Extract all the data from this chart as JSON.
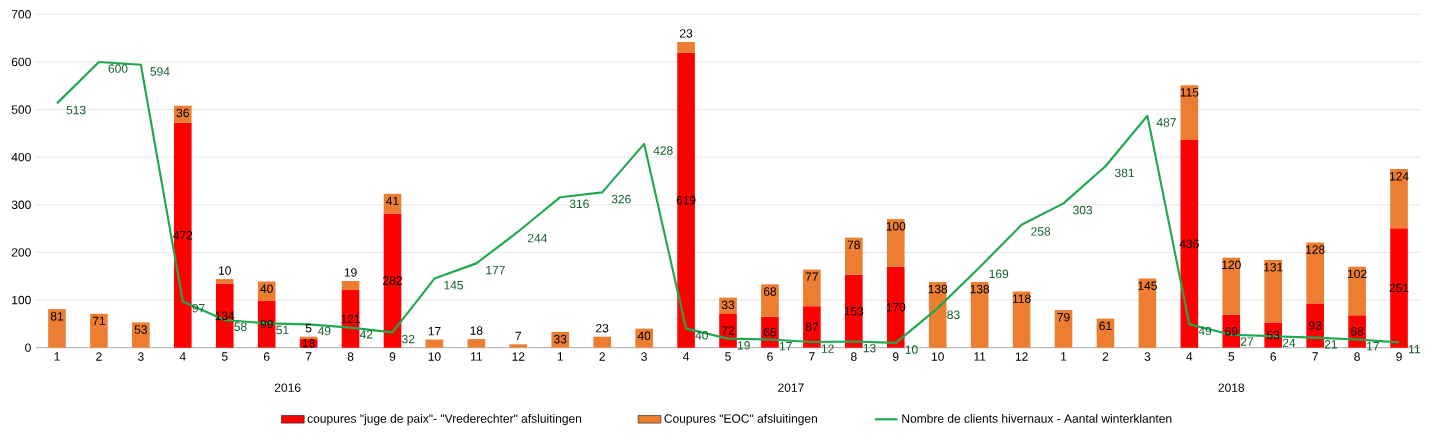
{
  "chart_data": {
    "type": "bar",
    "stacked": true,
    "grid": "y",
    "legend": "bottom",
    "data_labels": true,
    "categories": [
      "1",
      "2",
      "3",
      "4",
      "5",
      "6",
      "7",
      "8",
      "9",
      "10",
      "11",
      "12",
      "1",
      "2",
      "3",
      "4",
      "5",
      "6",
      "7",
      "8",
      "9",
      "10",
      "11",
      "12",
      "1",
      "2",
      "3",
      "4",
      "5",
      "6",
      "7",
      "8",
      "9"
    ],
    "ylim": [
      0,
      700
    ],
    "yticks": [
      0,
      100,
      200,
      300,
      400,
      500,
      600,
      700
    ],
    "annotations": [
      "2016",
      "2017",
      "2018"
    ],
    "series": [
      {
        "name": "coupures \"juge de paix\"-  \"Vrederechter\" afsluitingen",
        "color": "#ff0000",
        "values": [
          null,
          null,
          null,
          472,
          134,
          99,
          18,
          121,
          282,
          null,
          null,
          null,
          null,
          null,
          null,
          619,
          72,
          65,
          87,
          153,
          170,
          null,
          null,
          null,
          null,
          null,
          null,
          436,
          69,
          53,
          93,
          68,
          251
        ]
      },
      {
        "name": "Coupures \"EOC\" afsluitingen",
        "color": "#ed7d31",
        "values": [
          81,
          71,
          53,
          36,
          10,
          40,
          5,
          19,
          41,
          17,
          18,
          7,
          33,
          23,
          40,
          23,
          33,
          68,
          77,
          78,
          100,
          138,
          138,
          118,
          79,
          61,
          145,
          115,
          120,
          131,
          128,
          102,
          124
        ]
      },
      {
        "name": "Nombre de clients hivernaux - Aantal  winterklanten",
        "type": "line",
        "color": "#1fa84f",
        "values": [
          513,
          600,
          594,
          97,
          58,
          51,
          49,
          42,
          32,
          145,
          177,
          244,
          316,
          326,
          428,
          40,
          19,
          17,
          12,
          13,
          10,
          83,
          169,
          258,
          303,
          381,
          487,
          49,
          27,
          24,
          21,
          17,
          11
        ]
      }
    ]
  }
}
